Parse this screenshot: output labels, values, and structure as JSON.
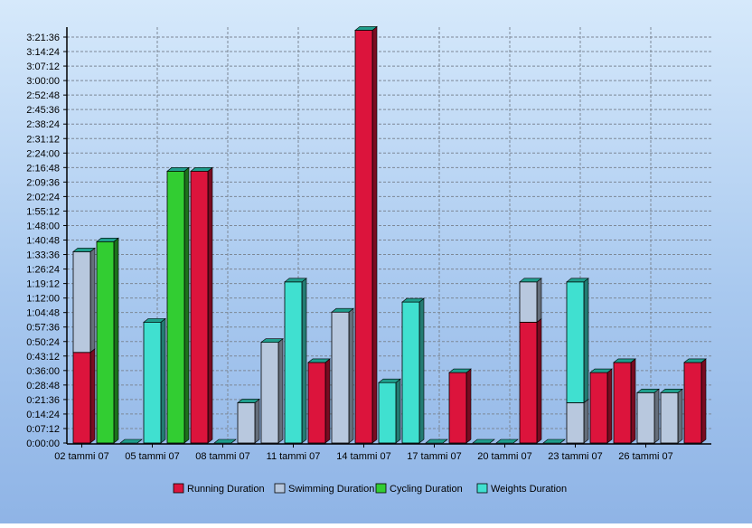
{
  "chart_data": {
    "type": "bar",
    "stacked": true,
    "title": "",
    "xlabel": "",
    "ylabel": "",
    "y_unit": "seconds",
    "ylim": [
      0,
      12096
    ],
    "ytick_step": 432,
    "ytick_labels": [
      "0:00:00",
      "0:07:12",
      "0:14:24",
      "0:21:36",
      "0:28:48",
      "0:36:00",
      "0:43:12",
      "0:50:24",
      "0:57:36",
      "1:04:48",
      "1:12:00",
      "1:19:12",
      "1:26:24",
      "1:33:36",
      "1:40:48",
      "1:48:00",
      "1:55:12",
      "2:02:24",
      "2:09:36",
      "2:16:48",
      "2:24:00",
      "2:31:12",
      "2:38:24",
      "2:45:36",
      "2:52:48",
      "3:00:00",
      "3:07:12",
      "3:14:24",
      "3:21:36"
    ],
    "grid": true,
    "legend_position": "bottom",
    "x_labels": [
      "02 tammi 07",
      "05 tammi 07",
      "08 tammi 07",
      "11 tammi 07",
      "14 tammi 07",
      "17 tammi 07",
      "20 tammi 07",
      "23 tammi 07",
      "26 tammi 07"
    ],
    "x_label_groups": [
      0,
      3,
      6,
      9,
      12,
      15,
      18,
      21,
      24
    ],
    "series": [
      {
        "name": "Running Duration",
        "color": "#dc143c"
      },
      {
        "name": "Swimming Duration",
        "color": "#b8c8de"
      },
      {
        "name": "Cycling Duration",
        "color": "#32cd32"
      },
      {
        "name": "Weights Duration",
        "color": "#40e0d0"
      }
    ],
    "groups": [
      [
        {
          "series": 0,
          "value": 2700
        },
        {
          "series": 1,
          "value": 3000
        }
      ],
      [
        {
          "series": 2,
          "value": 6000
        }
      ],
      [
        {
          "series": 2,
          "value": 0
        }
      ],
      [
        {
          "series": 3,
          "value": 3600
        }
      ],
      [
        {
          "series": 2,
          "value": 8100
        }
      ],
      [
        {
          "series": 0,
          "value": 8100
        }
      ],
      [
        {
          "series": 2,
          "value": 0
        }
      ],
      [
        {
          "series": 1,
          "value": 1200
        }
      ],
      [
        {
          "series": 1,
          "value": 3000
        }
      ],
      [
        {
          "series": 3,
          "value": 4800
        }
      ],
      [
        {
          "series": 0,
          "value": 2400
        }
      ],
      [
        {
          "series": 1,
          "value": 3900
        }
      ],
      [
        {
          "series": 0,
          "value": 12300
        }
      ],
      [
        {
          "series": 3,
          "value": 1800
        }
      ],
      [
        {
          "series": 3,
          "value": 4200
        }
      ],
      [
        {
          "series": 2,
          "value": 0
        }
      ],
      [
        {
          "series": 0,
          "value": 2100
        }
      ],
      [
        {
          "series": 2,
          "value": 0
        }
      ],
      [
        {
          "series": 2,
          "value": 0
        }
      ],
      [
        {
          "series": 0,
          "value": 3600
        },
        {
          "series": 1,
          "value": 1200
        }
      ],
      [
        {
          "series": 2,
          "value": 0
        }
      ],
      [
        {
          "series": 1,
          "value": 1200
        },
        {
          "series": 3,
          "value": 3600
        }
      ],
      [
        {
          "series": 0,
          "value": 2100
        }
      ],
      [
        {
          "series": 0,
          "value": 2400
        }
      ],
      [
        {
          "series": 1,
          "value": 1500
        }
      ],
      [
        {
          "series": 1,
          "value": 1500
        }
      ],
      [
        {
          "series": 0,
          "value": 2400
        }
      ]
    ]
  }
}
